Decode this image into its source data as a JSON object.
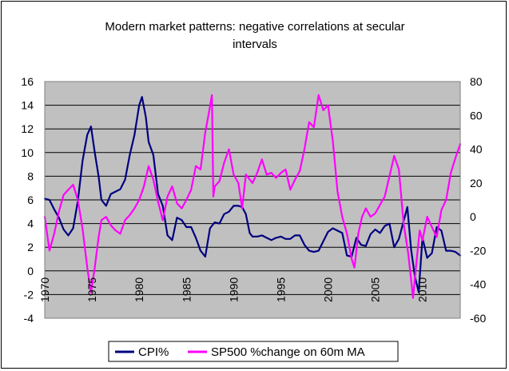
{
  "chart_data": {
    "type": "line",
    "title_lines": [
      "Modern market patterns: negative correlations at secular",
      "intervals"
    ],
    "background": "#C0C0C0",
    "grid": true,
    "legend_position": "bottom",
    "x_range": [
      1970,
      2014
    ],
    "x_ticks": [
      "1970",
      "1975",
      "1980",
      "1985",
      "1990",
      "1995",
      "2000",
      "2005",
      "2010"
    ],
    "y_left": {
      "range": [
        -4,
        16
      ],
      "ticks": [
        "-4",
        "-2",
        "0",
        "2",
        "4",
        "6",
        "8",
        "10",
        "12",
        "14",
        "16"
      ]
    },
    "y_right": {
      "range": [
        -60,
        80
      ],
      "ticks": [
        "-60",
        "-40",
        "-20",
        "0",
        "20",
        "40",
        "60",
        "80"
      ]
    },
    "series": [
      {
        "name": "CPI%",
        "axis": "left",
        "color": "#000080",
        "x": [
          1970.0,
          1970.5,
          1971.0,
          1971.5,
          1972.0,
          1972.5,
          1973.0,
          1973.5,
          1974.0,
          1974.5,
          1974.9,
          1975.3,
          1975.7,
          1976.0,
          1976.5,
          1977.0,
          1977.5,
          1978.0,
          1978.5,
          1979.0,
          1979.5,
          1980.0,
          1980.3,
          1980.7,
          1981.0,
          1981.5,
          1982.0,
          1982.5,
          1983.0,
          1983.5,
          1984.0,
          1984.5,
          1985.0,
          1985.5,
          1986.0,
          1986.5,
          1987.0,
          1987.5,
          1988.0,
          1988.5,
          1989.0,
          1989.5,
          1990.0,
          1990.5,
          1990.9,
          1991.3,
          1991.7,
          1992.0,
          1992.5,
          1993.0,
          1993.5,
          1994.0,
          1994.5,
          1995.0,
          1995.5,
          1996.0,
          1996.5,
          1997.0,
          1997.5,
          1998.0,
          1998.5,
          1999.0,
          1999.5,
          2000.0,
          2000.5,
          2001.0,
          2001.5,
          2002.0,
          2002.5,
          2003.0,
          2003.5,
          2004.0,
          2004.5,
          2005.0,
          2005.5,
          2006.0,
          2006.5,
          2007.0,
          2007.5,
          2008.0,
          2008.4,
          2008.8,
          2009.2,
          2009.6,
          2010.0,
          2010.5,
          2011.0,
          2011.5,
          2012.0,
          2012.5,
          2013.0,
          2013.5,
          2014.0
        ],
        "values": [
          6.1,
          6.0,
          5.2,
          4.5,
          3.5,
          3.0,
          3.6,
          5.9,
          9.3,
          11.5,
          12.2,
          10.0,
          8.0,
          6.0,
          5.5,
          6.5,
          6.7,
          6.9,
          7.7,
          9.8,
          11.5,
          14.0,
          14.7,
          13.0,
          10.9,
          9.8,
          6.5,
          5.5,
          3.0,
          2.6,
          4.5,
          4.3,
          3.7,
          3.7,
          2.8,
          1.7,
          1.2,
          3.6,
          4.1,
          4.0,
          4.8,
          5.0,
          5.5,
          5.5,
          5.4,
          4.8,
          3.2,
          2.9,
          2.9,
          3.0,
          2.8,
          2.6,
          2.8,
          2.9,
          2.7,
          2.7,
          3.0,
          3.0,
          2.2,
          1.7,
          1.6,
          1.7,
          2.5,
          3.3,
          3.6,
          3.4,
          3.2,
          1.3,
          1.2,
          2.8,
          2.2,
          2.1,
          3.1,
          3.5,
          3.2,
          3.8,
          4.0,
          2.0,
          2.7,
          4.2,
          5.4,
          1.8,
          -0.5,
          -1.8,
          2.8,
          1.1,
          1.5,
          3.7,
          3.4,
          1.7,
          1.7,
          1.6,
          1.3
        ]
      },
      {
        "name": "SP500 %change on 60m MA",
        "axis": "right",
        "color": "#FF00FF",
        "x": [
          1970.0,
          1970.5,
          1971.0,
          1971.5,
          1972.0,
          1972.5,
          1973.0,
          1973.5,
          1974.0,
          1974.5,
          1974.9,
          1975.3,
          1975.7,
          1976.0,
          1976.5,
          1977.0,
          1977.5,
          1978.0,
          1978.5,
          1979.0,
          1979.5,
          1980.0,
          1980.5,
          1981.0,
          1981.5,
          1982.0,
          1982.5,
          1983.0,
          1983.5,
          1984.0,
          1984.5,
          1985.0,
          1985.5,
          1986.0,
          1986.5,
          1987.0,
          1987.4,
          1987.7,
          1987.85,
          1988.0,
          1988.5,
          1989.0,
          1989.5,
          1990.0,
          1990.5,
          1990.9,
          1991.3,
          1992.0,
          1992.5,
          1993.0,
          1993.5,
          1994.0,
          1994.5,
          1995.0,
          1995.5,
          1996.0,
          1996.5,
          1997.0,
          1997.5,
          1998.0,
          1998.5,
          1999.0,
          1999.5,
          2000.0,
          2000.5,
          2001.0,
          2001.5,
          2002.0,
          2002.5,
          2002.8,
          2003.2,
          2003.6,
          2004.0,
          2004.5,
          2005.0,
          2005.5,
          2006.0,
          2006.5,
          2007.0,
          2007.5,
          2008.0,
          2008.5,
          2009.0,
          2009.3,
          2009.7,
          2010.0,
          2010.5,
          2011.0,
          2011.5,
          2012.0,
          2012.5,
          2013.0,
          2013.5,
          2014.0
        ],
        "values": [
          0,
          -20,
          -10,
          3,
          13,
          16,
          19,
          10,
          -7,
          -30,
          -45,
          -30,
          -12,
          -2,
          0,
          -5,
          -8,
          -10,
          -2,
          1,
          5,
          10,
          18,
          30,
          22,
          9,
          -2,
          12,
          18,
          8,
          5,
          10,
          16,
          30,
          28,
          50,
          62,
          72,
          12,
          18,
          21,
          32,
          40,
          25,
          20,
          5,
          25,
          20,
          26,
          34,
          25,
          26,
          23,
          26,
          28,
          16,
          22,
          27,
          40,
          56,
          53,
          72,
          63,
          66,
          45,
          15,
          0,
          -10,
          -25,
          -30,
          -10,
          0,
          5,
          0,
          2,
          7,
          12,
          24,
          36,
          28,
          -4,
          -22,
          -48,
          -30,
          -8,
          -14,
          0,
          -6,
          -12,
          4,
          10,
          26,
          35,
          43
        ]
      }
    ]
  }
}
